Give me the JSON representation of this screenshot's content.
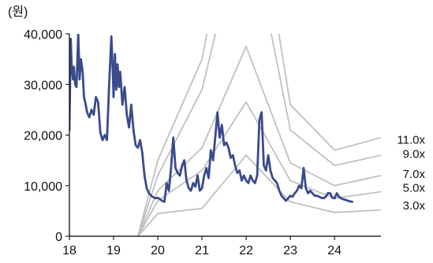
{
  "chart_data": {
    "type": "line",
    "unit_label": "(원)",
    "xlim": [
      2018.0,
      2025.05
    ],
    "ylim": [
      0,
      40000
    ],
    "x_ticks": [
      {
        "value": 2018,
        "label": "18"
      },
      {
        "value": 2019,
        "label": "19"
      },
      {
        "value": 2020,
        "label": "20"
      },
      {
        "value": 2021,
        "label": "21"
      },
      {
        "value": 2022,
        "label": "22"
      },
      {
        "value": 2023,
        "label": "23"
      },
      {
        "value": 2024,
        "label": "24"
      }
    ],
    "y_ticks": [
      {
        "value": 0,
        "label": "0"
      },
      {
        "value": 10000,
        "label": "10,000"
      },
      {
        "value": 20000,
        "label": "20,000"
      },
      {
        "value": 30000,
        "label": "30,000"
      },
      {
        "value": 40000,
        "label": "40,000"
      }
    ],
    "price_color": "#3a4a8c",
    "band_color": "#c0c0c0",
    "price_series": {
      "x": [
        2018.0,
        2018.03,
        2018.05,
        2018.08,
        2018.1,
        2018.13,
        2018.16,
        2018.2,
        2018.23,
        2018.26,
        2018.3,
        2018.33,
        2018.37,
        2018.4,
        2018.45,
        2018.5,
        2018.55,
        2018.6,
        2018.65,
        2018.7,
        2018.75,
        2018.8,
        2018.85,
        2018.9,
        2018.95,
        2018.98,
        2019.0,
        2019.03,
        2019.06,
        2019.09,
        2019.12,
        2019.15,
        2019.2,
        2019.25,
        2019.3,
        2019.35,
        2019.4,
        2019.45,
        2019.5,
        2019.55,
        2019.6,
        2019.65,
        2019.7,
        2019.75,
        2019.8,
        2019.85,
        2019.9,
        2019.95,
        2020.0,
        2020.05,
        2020.1,
        2020.15,
        2020.2,
        2020.25,
        2020.3,
        2020.35,
        2020.4,
        2020.45,
        2020.5,
        2020.55,
        2020.6,
        2020.65,
        2020.7,
        2020.75,
        2020.8,
        2020.85,
        2020.9,
        2020.95,
        2021.0,
        2021.05,
        2021.1,
        2021.15,
        2021.2,
        2021.25,
        2021.3,
        2021.35,
        2021.4,
        2021.45,
        2021.5,
        2021.55,
        2021.6,
        2021.65,
        2021.7,
        2021.75,
        2021.8,
        2021.85,
        2021.9,
        2021.95,
        2022.0,
        2022.05,
        2022.1,
        2022.15,
        2022.2,
        2022.25,
        2022.3,
        2022.35,
        2022.4,
        2022.45,
        2022.5,
        2022.55,
        2022.6,
        2022.65,
        2022.7,
        2022.75,
        2022.8,
        2022.85,
        2022.9,
        2022.95,
        2023.0,
        2023.05,
        2023.1,
        2023.15,
        2023.2,
        2023.25,
        2023.3,
        2023.35,
        2023.4,
        2023.45,
        2023.5,
        2023.55,
        2023.6,
        2023.65,
        2023.7,
        2023.75,
        2023.8,
        2023.85,
        2023.9,
        2023.95,
        2024.0,
        2024.05,
        2024.1,
        2024.15,
        2024.2,
        2024.25,
        2024.3,
        2024.35,
        2024.4
      ],
      "y": [
        21000,
        39000,
        34000,
        31000,
        33500,
        30000,
        29500,
        40000,
        31000,
        35000,
        32500,
        27500,
        26000,
        24500,
        23500,
        25000,
        24000,
        27500,
        26500,
        20500,
        19000,
        20000,
        19000,
        30000,
        39500,
        33000,
        27500,
        36000,
        29000,
        34000,
        29500,
        32500,
        26000,
        29500,
        24000,
        21500,
        26000,
        21000,
        18000,
        17500,
        19000,
        16500,
        12000,
        9500,
        8500,
        8000,
        7700,
        7500,
        7600,
        7300,
        7000,
        6800,
        10500,
        9000,
        13500,
        19500,
        13500,
        12500,
        12000,
        14000,
        15000,
        11000,
        9500,
        9000,
        10500,
        9800,
        12000,
        9000,
        9500,
        12000,
        13500,
        11500,
        17000,
        15000,
        19500,
        24500,
        19500,
        22000,
        18000,
        18500,
        17500,
        15500,
        16000,
        14000,
        12500,
        13000,
        11000,
        12000,
        11000,
        10500,
        12000,
        11000,
        10500,
        12000,
        23000,
        24500,
        14000,
        13000,
        16000,
        13000,
        11500,
        11000,
        10500,
        9000,
        8000,
        7500,
        7000,
        7500,
        8000,
        7800,
        8500,
        9000,
        10000,
        9500,
        13500,
        9500,
        8500,
        9000,
        8500,
        8000,
        8000,
        7800,
        7600,
        7500,
        7800,
        8500,
        8500,
        7600,
        7500,
        8500,
        7800,
        7500,
        7300,
        7200,
        7000,
        6900,
        6800
      ]
    },
    "bands": [
      {
        "label": "11.0x",
        "x": [
          2019.55,
          2020.0,
          2021.0,
          2022.0,
          2023.0,
          2024.0,
          2025.05
        ],
        "y": [
          0,
          15000,
          35000,
          80000,
          26000,
          17000,
          19500
        ]
      },
      {
        "label": "9.0x",
        "x": [
          2019.55,
          2020.0,
          2021.0,
          2022.0,
          2023.0,
          2024.0,
          2025.05
        ],
        "y": [
          0,
          12000,
          29000,
          65000,
          21000,
          14000,
          16000
        ]
      },
      {
        "label": "7.0x",
        "x": [
          2019.55,
          2020.0,
          2021.0,
          2022.0,
          2023.0,
          2024.0,
          2025.05
        ],
        "y": [
          0,
          9000,
          17500,
          37500,
          14500,
          10000,
          12000
        ]
      },
      {
        "label": "5.0x",
        "x": [
          2019.55,
          2020.0,
          2021.0,
          2022.0,
          2023.0,
          2024.0,
          2025.05
        ],
        "y": [
          0,
          7000,
          13000,
          26500,
          11000,
          7500,
          8800
        ]
      },
      {
        "label": "3.0x",
        "x": [
          2019.55,
          2020.0,
          2021.0,
          2022.0,
          2023.0,
          2024.0,
          2025.05
        ],
        "y": [
          0,
          4500,
          5500,
          16000,
          6800,
          4700,
          5200
        ]
      }
    ],
    "band_label_y": [
      18300,
      15500,
      11500,
      8800,
      5300
    ]
  }
}
